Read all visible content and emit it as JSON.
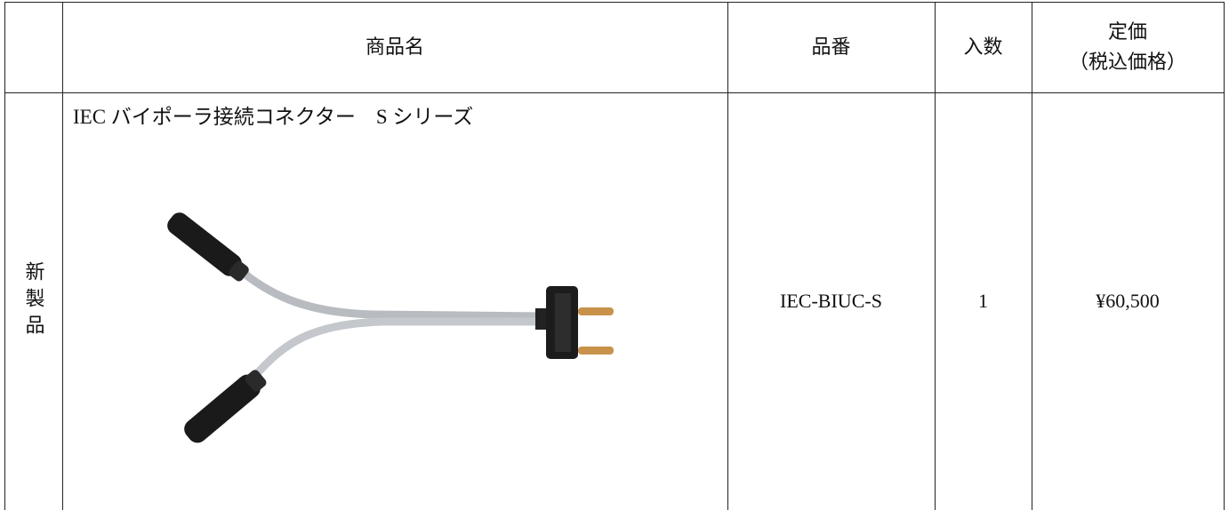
{
  "table": {
    "header": [
      "商品名",
      "品番",
      "入数",
      [
        "定価",
        "（税込価格）"
      ]
    ],
    "rows": [
      [
        "新製品",
        "IEC バイポーラ接続コネクター　S シリーズ",
        "IEC-BIUC-S",
        1,
        "¥60,500"
      ]
    ]
  }
}
